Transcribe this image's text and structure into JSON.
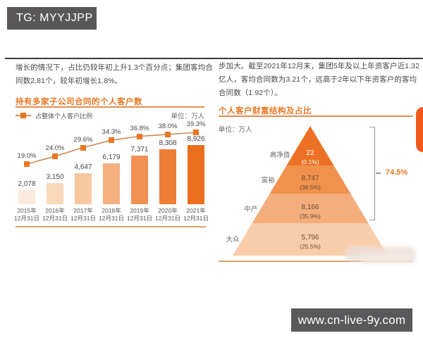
{
  "badge": {
    "label": "TG: MYYJJPP"
  },
  "website": {
    "label": "www.cn-live-9y.com"
  },
  "left": {
    "paragraph_lines": [
      "增长的情况下，占比仍较年初上升1.3个百分点；集团客均合",
      "同数2.81个，较年初增长1.8%。"
    ]
  },
  "right": {
    "paragraph_lines": [
      "步加大。截至2021年12月末，集团5年及以上年资客户近1.32",
      "亿人，客均合同数为3.21个，远高于2年以下年资客户的客均",
      "合同数（1.92个）。"
    ]
  },
  "colors": {
    "accent": "#e87722",
    "rule_dark": "#3d3939",
    "rule_orange": "#dfa06b",
    "badge_bg": "#595757",
    "site_bar_bg": "#58595b"
  },
  "chart_data": [
    {
      "type": "bar",
      "title": "持有多家子公司合同的个人客户数",
      "unit_label": "单位：万人",
      "legend_label": "占整体个人客户比例",
      "categories": [
        "2015年",
        "2016年",
        "2017年",
        "2018年",
        "2019年",
        "2020年",
        "2021年"
      ],
      "category_suffix": "12月31日",
      "series": [
        {
          "name": "持有多家子公司合同的个人客户数",
          "type": "bar",
          "values": [
            2078,
            3150,
            4647,
            6179,
            7371,
            8308,
            8926
          ],
          "value_labels": [
            "2,078",
            "3,150",
            "4,647",
            "6,179",
            "7,371",
            "8,308",
            "8,926"
          ]
        },
        {
          "name": "占整体个人客户比例",
          "type": "line",
          "values": [
            19.0,
            24.0,
            29.6,
            34.3,
            36.8,
            38.0,
            39.3
          ],
          "value_labels": [
            "19.0%",
            "24.0%",
            "29.6%",
            "34.3%",
            "36.8%",
            "38.0%",
            "39.3%"
          ]
        }
      ],
      "bar_colors": [
        "#fcebdd",
        "#fad8ba",
        "#f7c79f",
        "#f5b07e",
        "#f19254",
        "#ee7e36",
        "#ec6d1e"
      ],
      "line_color": "#cd8a58",
      "marker_color": "#e87722",
      "ylim": [
        0,
        9000
      ],
      "grid": false,
      "legend_position": "top-left"
    },
    {
      "type": "pyramid",
      "title": "个人客户财富结构及占比",
      "unit_label": "单位：万人",
      "tiers": [
        {
          "category": "高净值",
          "value": 22,
          "value_label": "22",
          "pct_label": "(0.1%)",
          "color": "#ed7124",
          "text_color": "#ffffff"
        },
        {
          "category": "富裕",
          "value": 8747,
          "value_label": "8,747",
          "pct_label": "(38.5%)",
          "color": "#f0914d",
          "text_color": "#6d4c33"
        },
        {
          "category": "中产",
          "value": 8166,
          "value_label": "8,166",
          "pct_label": "(35.9%)",
          "color": "#f4ae7e",
          "text_color": "#6d4c33"
        },
        {
          "category": "大众",
          "value": 5796,
          "value_label": "5,796",
          "pct_label": "(25.5%)",
          "color": "#f9cda9",
          "text_color": "#6d4c33"
        }
      ],
      "bracket": {
        "label": "74.5%",
        "covers_tiers": [
          "高净值",
          "富裕",
          "中产"
        ]
      }
    }
  ]
}
